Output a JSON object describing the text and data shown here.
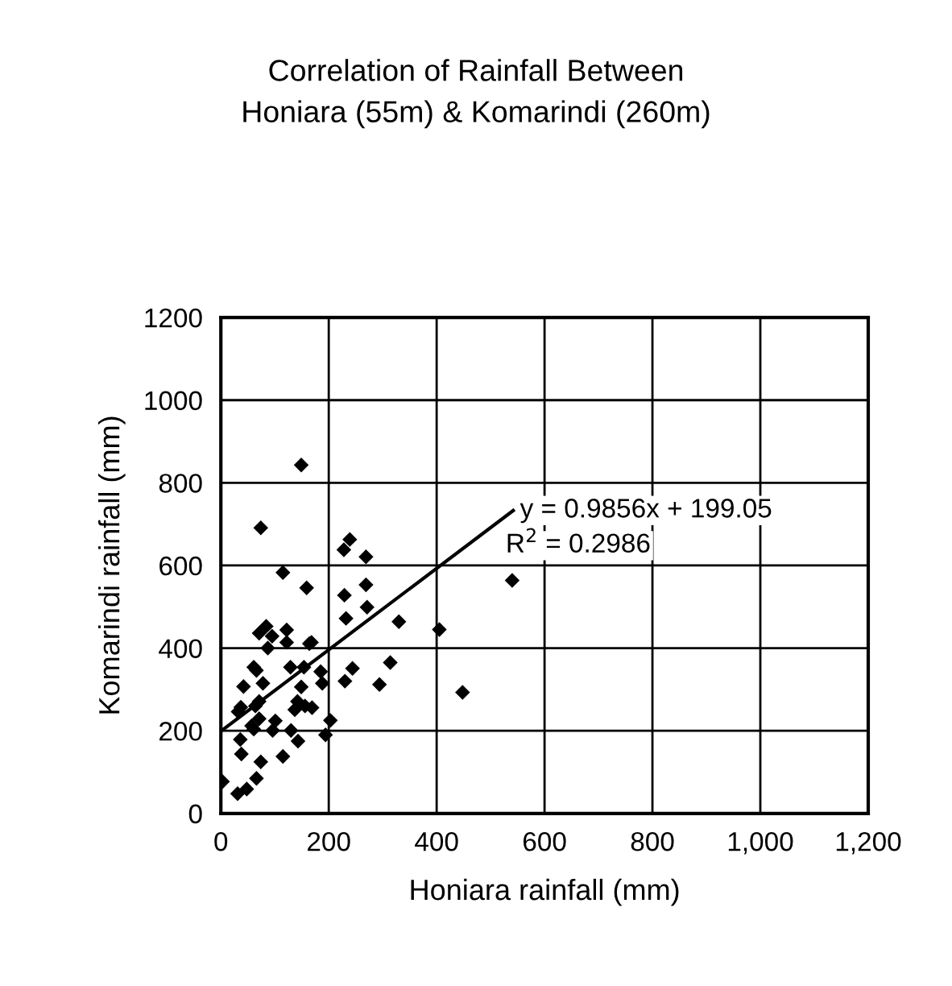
{
  "chart_data": {
    "type": "scatter",
    "title": "Correlation of Rainfall Between\nHoniara (55m) & Komarindi (260m)",
    "xlabel": "Honiara rainfall (mm)",
    "ylabel": "Komarindi rainfall (mm)",
    "xlim": [
      0,
      1200
    ],
    "ylim": [
      0,
      1200
    ],
    "xticks": [
      0,
      200,
      400,
      600,
      800,
      {
        "value": 1000,
        "label": "1,000"
      },
      {
        "value": 1200,
        "label": "1,200"
      }
    ],
    "yticks": [
      0,
      200,
      400,
      600,
      800,
      1000,
      1200
    ],
    "grid": true,
    "annotations": [
      {
        "text": "y = 0.9856x + 199.05",
        "x": 542,
        "y": 733
      },
      "R$^{2}$ = 0.2986"
    ],
    "series": [
      {
        "marker": "diamond",
        "color": "#000000",
        "x": [
          3,
          149,
          74,
          115,
          159,
          228,
          239,
          269,
          229,
          269,
          271,
          232,
          330,
          540,
          405,
          448,
          314,
          244,
          230,
          294,
          185,
          188,
          203,
          194,
          168,
          164,
          154,
          129,
          149,
          142,
          137,
          156,
          169,
          130,
          143,
          115,
          101,
          96,
          87,
          95,
          122,
          122,
          84,
          71,
          61,
          66,
          78,
          42,
          71,
          64,
          37,
          32,
          71,
          57,
          61,
          36,
          38,
          74,
          66,
          48,
          31
        ],
        "values": [
          77,
          843,
          691,
          583,
          546,
          638,
          663,
          621,
          528,
          553,
          499,
          472,
          464,
          564,
          445,
          293,
          365,
          351,
          320,
          312,
          343,
          315,
          225,
          190,
          414,
          411,
          354,
          354,
          306,
          271,
          251,
          260,
          256,
          201,
          175,
          138,
          224,
          201,
          400,
          429,
          444,
          414,
          453,
          436,
          354,
          346,
          315,
          307,
          271,
          260,
          257,
          246,
          229,
          212,
          204,
          179,
          144,
          125,
          85,
          59,
          48
        ]
      },
      {
        "type": "line",
        "color": "#000000",
        "x": [
          0,
          542
        ],
        "values": [
          199,
          733
        ]
      }
    ]
  }
}
